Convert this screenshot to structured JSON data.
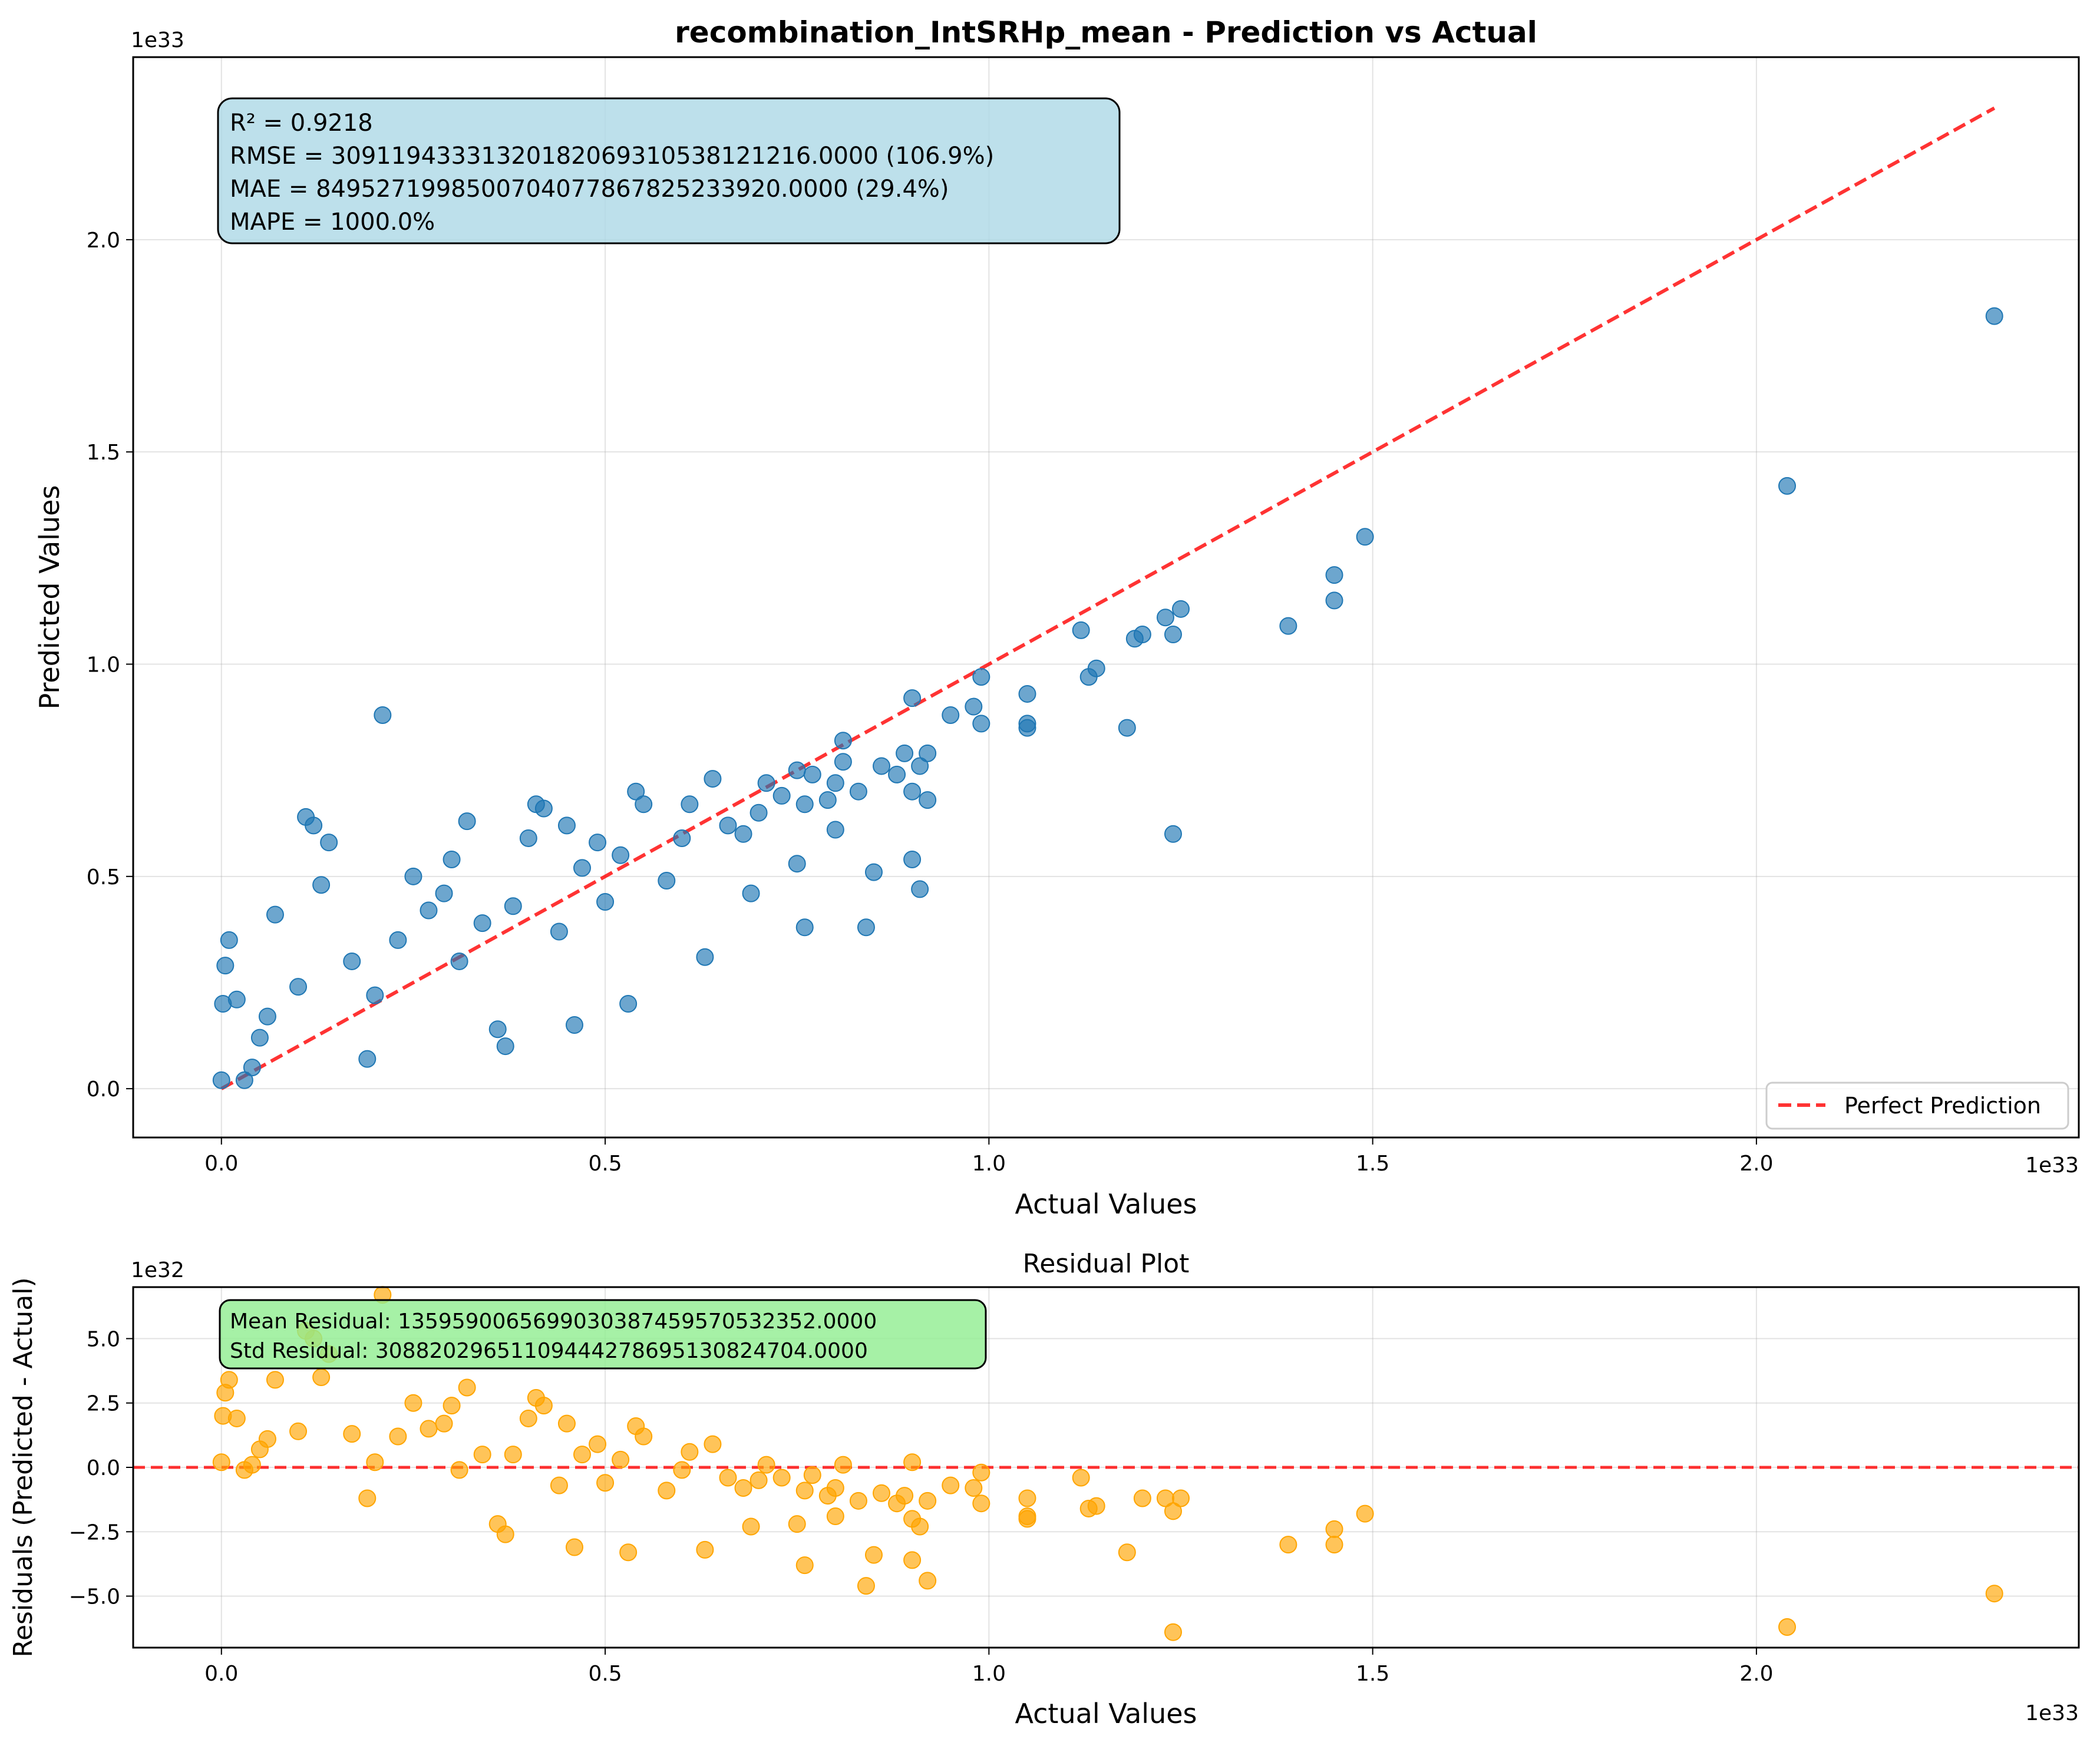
{
  "chart_data": [
    {
      "type": "scatter",
      "title": "recombination_IntSRHp_mean - Prediction vs Actual",
      "xlabel": "Actual Values",
      "ylabel": "Predicted Values",
      "x_offset_text": "1e33",
      "y_offset_text": "1e33",
      "xlim": [
        -0.115,
        2.42
      ],
      "ylim": [
        -0.115,
        2.43
      ],
      "x_ticks": [
        0.0,
        0.5,
        1.0,
        1.5,
        2.0
      ],
      "x_tick_labels": [
        "0.0",
        "0.5",
        "1.0",
        "1.5",
        "2.0"
      ],
      "y_ticks": [
        0.0,
        0.5,
        1.0,
        1.5,
        2.0
      ],
      "y_tick_labels": [
        "0.0",
        "0.5",
        "1.0",
        "1.5",
        "2.0"
      ],
      "grid": true,
      "point_color": "#1f77b4",
      "reference_line": {
        "name": "Perfect Prediction",
        "color": "#ff0000",
        "x": [
          0.0,
          2.31
        ],
        "y": [
          0.0,
          2.31
        ]
      },
      "legend": {
        "position": "bottom-right",
        "entries": [
          "Perfect Prediction"
        ]
      },
      "metrics_box": {
        "color": "#add8e6",
        "lines": [
          "R² = 0.9218",
          "RMSE = 309119433313201820693105381212​16.0000 (106.9%)",
          "MAE = 849527199850070407786782523​3920.0000 (29.4%)",
          "MAPE = 1000.0%"
        ]
      },
      "points": [
        [
          2.31,
          1.82
        ],
        [
          2.04,
          1.42
        ],
        [
          1.49,
          1.3
        ],
        [
          1.45,
          1.21
        ],
        [
          1.45,
          1.15
        ],
        [
          1.39,
          1.09
        ],
        [
          1.25,
          1.13
        ],
        [
          1.23,
          1.11
        ],
        [
          1.24,
          1.07
        ],
        [
          1.2,
          1.07
        ],
        [
          1.19,
          1.06
        ],
        [
          1.18,
          0.85
        ],
        [
          1.24,
          0.6
        ],
        [
          1.14,
          0.99
        ],
        [
          1.13,
          0.97
        ],
        [
          1.12,
          1.08
        ],
        [
          1.05,
          0.93
        ],
        [
          1.05,
          0.86
        ],
        [
          1.05,
          0.85
        ],
        [
          0.99,
          0.97
        ],
        [
          0.99,
          0.86
        ],
        [
          0.98,
          0.9
        ],
        [
          0.95,
          0.88
        ],
        [
          0.92,
          0.79
        ],
        [
          0.91,
          0.76
        ],
        [
          0.92,
          0.68
        ],
        [
          0.91,
          0.47
        ],
        [
          0.9,
          0.92
        ],
        [
          0.9,
          0.7
        ],
        [
          0.9,
          0.54
        ],
        [
          0.89,
          0.79
        ],
        [
          0.88,
          0.74
        ],
        [
          0.86,
          0.76
        ],
        [
          0.85,
          0.51
        ],
        [
          0.84,
          0.38
        ],
        [
          0.83,
          0.7
        ],
        [
          0.81,
          0.82
        ],
        [
          0.81,
          0.77
        ],
        [
          0.8,
          0.72
        ],
        [
          0.8,
          0.61
        ],
        [
          0.79,
          0.68
        ],
        [
          0.77,
          0.74
        ],
        [
          0.76,
          0.67
        ],
        [
          0.75,
          0.75
        ],
        [
          0.75,
          0.53
        ],
        [
          0.76,
          0.38
        ],
        [
          0.73,
          0.69
        ],
        [
          0.71,
          0.72
        ],
        [
          0.7,
          0.65
        ],
        [
          0.69,
          0.46
        ],
        [
          0.68,
          0.6
        ],
        [
          0.66,
          0.62
        ],
        [
          0.64,
          0.73
        ],
        [
          0.63,
          0.31
        ],
        [
          0.61,
          0.67
        ],
        [
          0.6,
          0.59
        ],
        [
          0.58,
          0.49
        ],
        [
          0.55,
          0.67
        ],
        [
          0.54,
          0.7
        ],
        [
          0.53,
          0.2
        ],
        [
          0.52,
          0.55
        ],
        [
          0.5,
          0.44
        ],
        [
          0.49,
          0.58
        ],
        [
          0.47,
          0.52
        ],
        [
          0.46,
          0.15
        ],
        [
          0.45,
          0.62
        ],
        [
          0.44,
          0.37
        ],
        [
          0.42,
          0.66
        ],
        [
          0.41,
          0.67
        ],
        [
          0.4,
          0.59
        ],
        [
          0.38,
          0.43
        ],
        [
          0.37,
          0.1
        ],
        [
          0.36,
          0.14
        ],
        [
          0.34,
          0.39
        ],
        [
          0.32,
          0.63
        ],
        [
          0.31,
          0.3
        ],
        [
          0.3,
          0.54
        ],
        [
          0.29,
          0.46
        ],
        [
          0.27,
          0.42
        ],
        [
          0.25,
          0.5
        ],
        [
          0.23,
          0.35
        ],
        [
          0.21,
          0.88
        ],
        [
          0.2,
          0.22
        ],
        [
          0.19,
          0.07
        ],
        [
          0.17,
          0.3
        ],
        [
          0.14,
          0.58
        ],
        [
          0.13,
          0.48
        ],
        [
          0.12,
          0.62
        ],
        [
          0.11,
          0.64
        ],
        [
          0.1,
          0.24
        ],
        [
          0.07,
          0.41
        ],
        [
          0.06,
          0.17
        ],
        [
          0.05,
          0.12
        ],
        [
          0.04,
          0.05
        ],
        [
          0.03,
          0.02
        ],
        [
          0.02,
          0.21
        ],
        [
          0.01,
          0.35
        ],
        [
          0.005,
          0.29
        ],
        [
          0.002,
          0.2
        ],
        [
          0.0,
          0.02
        ]
      ]
    },
    {
      "type": "scatter",
      "title": "Residual Plot",
      "xlabel": "Actual Values",
      "ylabel": "Residuals (Predicted - Actual)",
      "x_offset_text": "1e33",
      "y_offset_text": "1e32",
      "xlim": [
        -0.115,
        2.42
      ],
      "ylim": [
        -7.0,
        7.0
      ],
      "x_ticks": [
        0.0,
        0.5,
        1.0,
        1.5,
        2.0
      ],
      "x_tick_labels": [
        "0.0",
        "0.5",
        "1.0",
        "1.5",
        "2.0"
      ],
      "y_ticks": [
        -5.0,
        -2.5,
        0.0,
        2.5,
        5.0
      ],
      "y_tick_labels": [
        "−5.0",
        "−2.5",
        "0.0",
        "2.5",
        "5.0"
      ],
      "grid": true,
      "point_color": "#ffa500",
      "zero_line_color": "#ff0000",
      "stats_box": {
        "color": "#90ee90",
        "lines": [
          "Mean Residual: 13595900656990303874595705323​52.0000",
          "Std Residual: 30882029651109444278695130824704.0000"
        ]
      },
      "points": [
        [
          2.31,
          -4.9
        ],
        [
          2.04,
          -6.2
        ],
        [
          1.49,
          -1.8
        ],
        [
          1.45,
          -2.4
        ],
        [
          1.45,
          -3.0
        ],
        [
          1.39,
          -3.0
        ],
        [
          1.25,
          -1.2
        ],
        [
          1.24,
          -6.4
        ],
        [
          1.23,
          -1.2
        ],
        [
          1.24,
          -1.7
        ],
        [
          1.2,
          -1.2
        ],
        [
          1.18,
          -3.3
        ],
        [
          1.14,
          -1.5
        ],
        [
          1.13,
          -1.6
        ],
        [
          1.12,
          -0.4
        ],
        [
          1.05,
          -1.2
        ],
        [
          1.05,
          -1.9
        ],
        [
          1.05,
          -2.0
        ],
        [
          0.99,
          -0.2
        ],
        [
          0.99,
          -1.4
        ],
        [
          0.98,
          -0.8
        ],
        [
          0.95,
          -0.7
        ],
        [
          0.92,
          -1.3
        ],
        [
          0.92,
          -4.4
        ],
        [
          0.91,
          -2.3
        ],
        [
          0.9,
          0.2
        ],
        [
          0.9,
          -2.0
        ],
        [
          0.9,
          -3.6
        ],
        [
          0.89,
          -1.1
        ],
        [
          0.88,
          -1.4
        ],
        [
          0.86,
          -1.0
        ],
        [
          0.85,
          -3.4
        ],
        [
          0.84,
          -4.6
        ],
        [
          0.83,
          -1.3
        ],
        [
          0.81,
          0.1
        ],
        [
          0.8,
          -0.8
        ],
        [
          0.8,
          -1.9
        ],
        [
          0.79,
          -1.1
        ],
        [
          0.77,
          -0.3
        ],
        [
          0.76,
          -0.9
        ],
        [
          0.76,
          -3.8
        ],
        [
          0.75,
          -2.2
        ],
        [
          0.73,
          -0.4
        ],
        [
          0.71,
          0.1
        ],
        [
          0.7,
          -0.5
        ],
        [
          0.69,
          -2.3
        ],
        [
          0.68,
          -0.8
        ],
        [
          0.66,
          -0.4
        ],
        [
          0.64,
          0.9
        ],
        [
          0.63,
          -3.2
        ],
        [
          0.61,
          0.6
        ],
        [
          0.6,
          -0.1
        ],
        [
          0.58,
          -0.9
        ],
        [
          0.55,
          1.2
        ],
        [
          0.54,
          1.6
        ],
        [
          0.53,
          -3.3
        ],
        [
          0.52,
          0.3
        ],
        [
          0.5,
          -0.6
        ],
        [
          0.49,
          0.9
        ],
        [
          0.47,
          0.5
        ],
        [
          0.46,
          -3.1
        ],
        [
          0.45,
          1.7
        ],
        [
          0.44,
          -0.7
        ],
        [
          0.42,
          2.4
        ],
        [
          0.41,
          2.7
        ],
        [
          0.4,
          1.9
        ],
        [
          0.38,
          0.5
        ],
        [
          0.37,
          -2.6
        ],
        [
          0.36,
          -2.2
        ],
        [
          0.34,
          0.5
        ],
        [
          0.32,
          3.1
        ],
        [
          0.31,
          -0.1
        ],
        [
          0.3,
          2.4
        ],
        [
          0.29,
          1.7
        ],
        [
          0.27,
          1.5
        ],
        [
          0.25,
          2.5
        ],
        [
          0.23,
          1.2
        ],
        [
          0.21,
          6.7
        ],
        [
          0.2,
          0.2
        ],
        [
          0.19,
          -1.2
        ],
        [
          0.17,
          1.3
        ],
        [
          0.14,
          4.4
        ],
        [
          0.13,
          3.5
        ],
        [
          0.12,
          5.0
        ],
        [
          0.11,
          5.3
        ],
        [
          0.1,
          1.4
        ],
        [
          0.07,
          3.4
        ],
        [
          0.06,
          1.1
        ],
        [
          0.05,
          0.7
        ],
        [
          0.04,
          0.1
        ],
        [
          0.03,
          -0.1
        ],
        [
          0.02,
          1.9
        ],
        [
          0.01,
          3.4
        ],
        [
          0.005,
          2.9
        ],
        [
          0.002,
          2.0
        ],
        [
          0.0,
          0.2
        ]
      ]
    }
  ]
}
